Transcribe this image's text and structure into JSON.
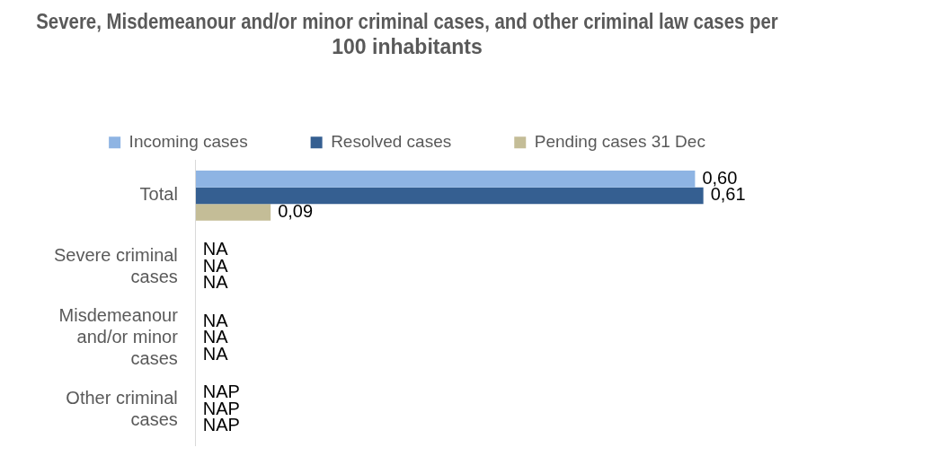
{
  "chart_data": {
    "type": "bar",
    "orientation": "horizontal",
    "title": "Severe, Misdemeanour and/or minor criminal cases, and other criminal law cases per 100 inhabitants",
    "categories": [
      "Total",
      "Severe criminal cases",
      "Misdemeanour and/or minor cases",
      "Other criminal cases"
    ],
    "series": [
      {
        "name": "Incoming cases",
        "color": "#8eb4e3",
        "values": [
          0.6,
          null,
          null,
          null
        ],
        "value_labels": [
          "0,60",
          "NA",
          "NA",
          "NAP"
        ]
      },
      {
        "name": "Resolved cases",
        "color": "#355f91",
        "values": [
          0.61,
          null,
          null,
          null
        ],
        "value_labels": [
          "0,61",
          "NA",
          "NA",
          "NAP"
        ]
      },
      {
        "name": "Pending cases 31 Dec",
        "color": "#c4bd97",
        "values": [
          0.09,
          null,
          null,
          null
        ],
        "value_labels": [
          "0,09",
          "NA",
          "NA",
          "NAP"
        ]
      }
    ],
    "legend": "top",
    "grid": false,
    "tick_labels": "y"
  }
}
